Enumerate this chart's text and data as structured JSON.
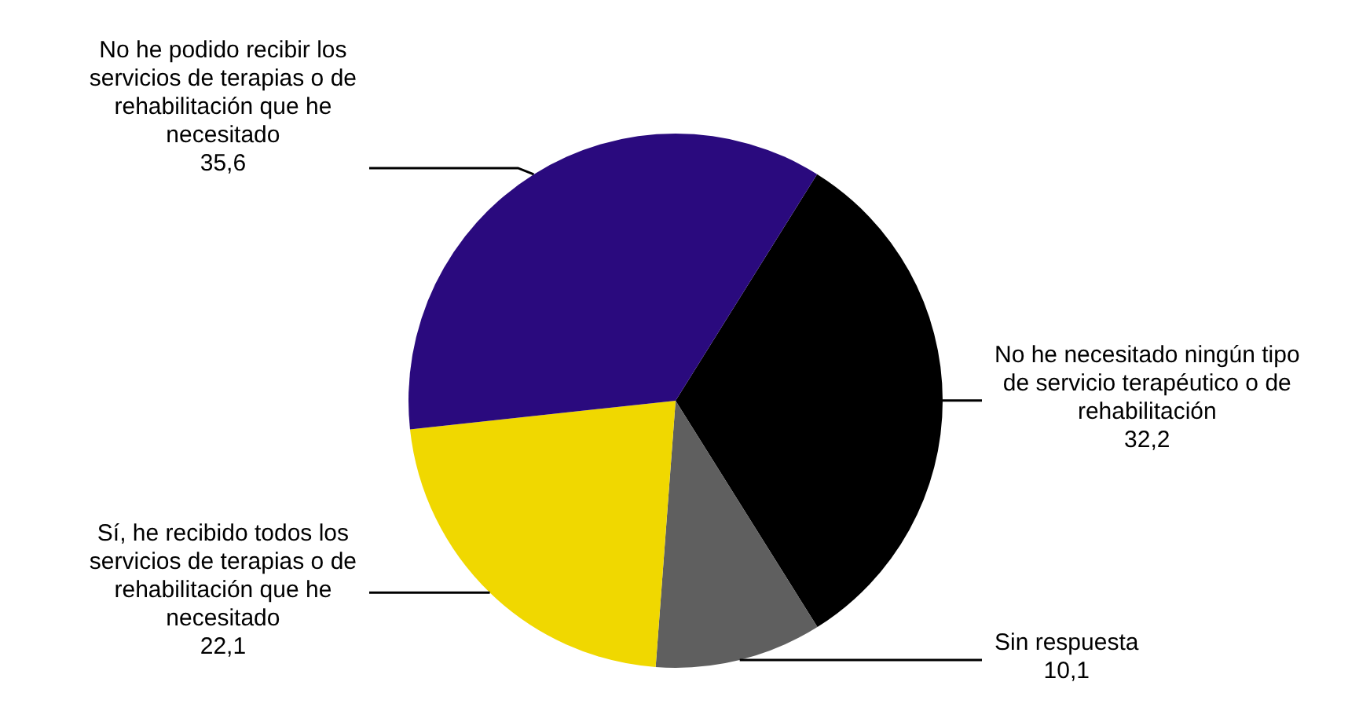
{
  "chart_data": {
    "type": "pie",
    "categories": [
      "No he necesitado ningún tipo de servicio terapéutico o de rehabilitación",
      "Sin respuesta",
      "Sí, he recibido todos los servicios de terapias o de rehabilitación que he necesitado",
      "No he podido recibir los servicios de terapias o de rehabilitación que he necesitado"
    ],
    "values": [
      32.2,
      10.1,
      22.1,
      35.6
    ],
    "colors": [
      "#000000",
      "#5f5f5f",
      "#f0d800",
      "#2a0a7e"
    ],
    "value_labels": [
      "32,2",
      "10,1",
      "22,1",
      "35,6"
    ]
  }
}
